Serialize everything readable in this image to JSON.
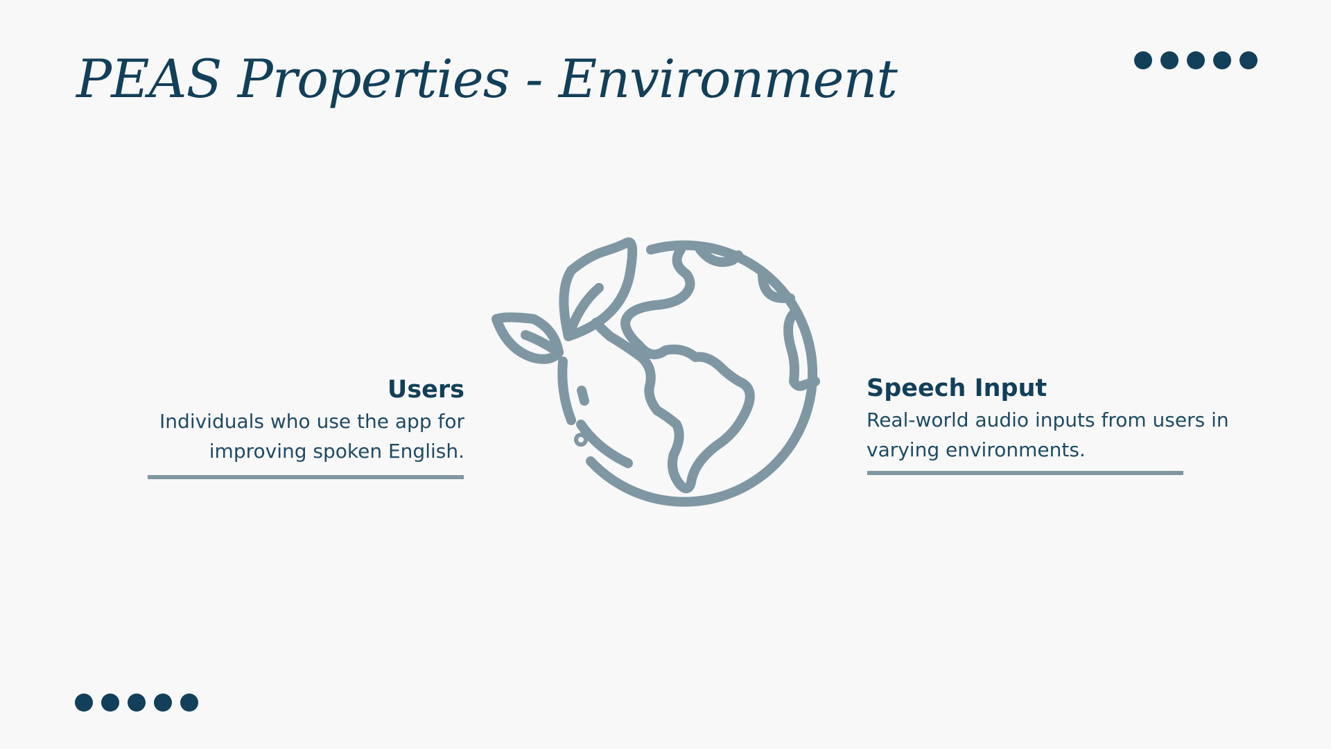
{
  "slide": {
    "title": "PEAS Properties - Environment"
  },
  "left_item": {
    "heading": "Users",
    "text_line1": "Individuals who use the app for",
    "text_line2": "improving spoken English."
  },
  "right_item": {
    "heading": "Speech Input",
    "text_line1": "Real-world audio inputs from users in",
    "text_line2": "varying environments."
  },
  "icons": {
    "center": "earth-with-sprout-icon",
    "decoration_top": "five-dots-decoration",
    "decoration_bottom": "five-dots-decoration"
  },
  "colors": {
    "primary": "#123f59",
    "accent": "#7f97a3",
    "background": "#f8f8f8"
  }
}
